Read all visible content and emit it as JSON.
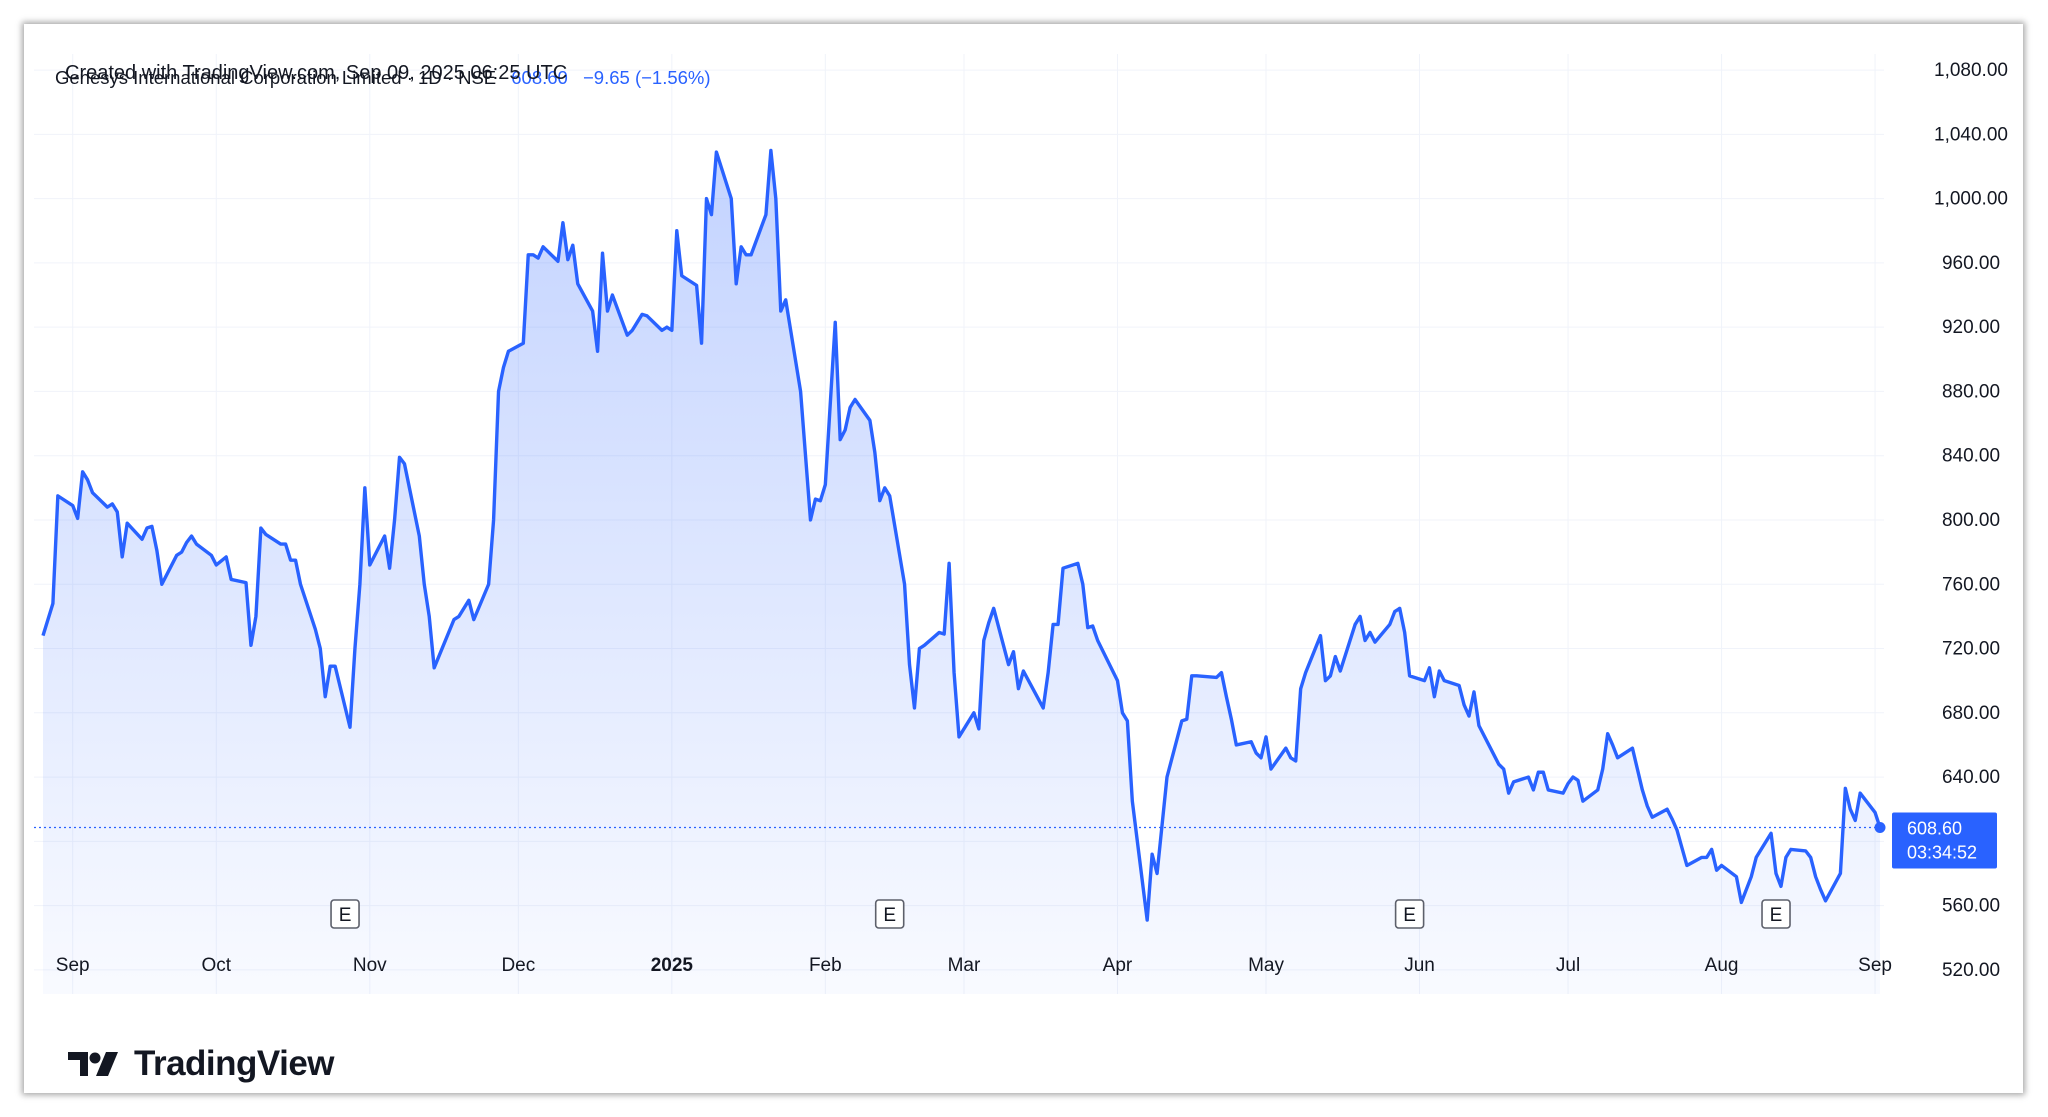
{
  "header": {
    "created_text": "Created with TradingView.com, Sep 09, 2025 06:25 UTC"
  },
  "legend": {
    "symbol": "Genesys International Corporation Limited · 1D · NSE",
    "last": "608.60",
    "change": "−9.65 (−1.56%)"
  },
  "price_badge": {
    "price": "608.60",
    "countdown": "03:34:52"
  },
  "earnings_marker": "E",
  "branding": {
    "logo_text": "TradingView"
  },
  "colors": {
    "line": "#2962ff",
    "area_top": "#2962ff",
    "text": "#131722",
    "grid": "#f0f3fa",
    "badge_bg": "#2962ff"
  },
  "chart_data": {
    "type": "area",
    "title": "Genesys International Corporation Limited · 1D · NSE",
    "interval": "1D",
    "exchange": "NSE",
    "xlabel": "",
    "ylabel": "",
    "ylim": [
      505,
      1090
    ],
    "y_ticks": [
      520,
      560,
      600,
      640,
      680,
      720,
      760,
      800,
      840,
      880,
      920,
      960,
      1000,
      1040,
      1080
    ],
    "y_tick_labels": [
      "520.00",
      "560.00",
      "640.00",
      "680.00",
      "720.00",
      "760.00",
      "800.00",
      "840.00",
      "880.00",
      "920.00",
      "960.00",
      "1,000.00",
      "1,040.00",
      "1,080.00"
    ],
    "x_axis_labels": [
      {
        "label": "Sep",
        "date": "2024-09-02",
        "bold": false
      },
      {
        "label": "Oct",
        "date": "2024-10-01",
        "bold": false
      },
      {
        "label": "Nov",
        "date": "2024-11-01",
        "bold": false
      },
      {
        "label": "Dec",
        "date": "2024-12-01",
        "bold": false
      },
      {
        "label": "2025",
        "date": "2025-01-01",
        "bold": true
      },
      {
        "label": "Feb",
        "date": "2025-02-01",
        "bold": false
      },
      {
        "label": "Mar",
        "date": "2025-03-01",
        "bold": false
      },
      {
        "label": "Apr",
        "date": "2025-04-01",
        "bold": false
      },
      {
        "label": "May",
        "date": "2025-05-01",
        "bold": false
      },
      {
        "label": "Jun",
        "date": "2025-06-01",
        "bold": false
      },
      {
        "label": "Jul",
        "date": "2025-07-01",
        "bold": false
      },
      {
        "label": "Aug",
        "date": "2025-08-01",
        "bold": false
      },
      {
        "label": "Sep",
        "date": "2025-09-01",
        "bold": false
      }
    ],
    "earnings_dates": [
      "2024-10-27",
      "2025-02-14",
      "2025-05-30",
      "2025-08-12"
    ],
    "last_price": 608.6,
    "grid": true,
    "series": [
      {
        "values": [
          [
            "2024-08-27",
            728
          ],
          [
            "2024-08-29",
            748
          ],
          [
            "2024-08-30",
            815
          ],
          [
            "2024-09-02",
            809
          ],
          [
            "2024-09-03",
            801
          ],
          [
            "2024-09-04",
            830
          ],
          [
            "2024-09-05",
            825
          ],
          [
            "2024-09-06",
            817
          ],
          [
            "2024-09-09",
            808
          ],
          [
            "2024-09-10",
            810
          ],
          [
            "2024-09-11",
            805
          ],
          [
            "2024-09-12",
            777
          ],
          [
            "2024-09-13",
            798
          ],
          [
            "2024-09-16",
            788
          ],
          [
            "2024-09-17",
            795
          ],
          [
            "2024-09-18",
            796
          ],
          [
            "2024-09-19",
            781
          ],
          [
            "2024-09-20",
            760
          ],
          [
            "2024-09-23",
            778
          ],
          [
            "2024-09-24",
            780
          ],
          [
            "2024-09-25",
            786
          ],
          [
            "2024-09-26",
            790
          ],
          [
            "2024-09-27",
            785
          ],
          [
            "2024-09-30",
            778
          ],
          [
            "2024-10-01",
            772
          ],
          [
            "2024-10-03",
            777
          ],
          [
            "2024-10-04",
            763
          ],
          [
            "2024-10-07",
            761
          ],
          [
            "2024-10-08",
            722
          ],
          [
            "2024-10-09",
            740
          ],
          [
            "2024-10-10",
            795
          ],
          [
            "2024-10-11",
            791
          ],
          [
            "2024-10-14",
            785
          ],
          [
            "2024-10-15",
            785
          ],
          [
            "2024-10-16",
            775
          ],
          [
            "2024-10-17",
            775
          ],
          [
            "2024-10-18",
            760
          ],
          [
            "2024-10-21",
            732
          ],
          [
            "2024-10-22",
            720
          ],
          [
            "2024-10-23",
            690
          ],
          [
            "2024-10-24",
            709
          ],
          [
            "2024-10-25",
            709
          ],
          [
            "2024-10-28",
            671
          ],
          [
            "2024-10-29",
            720
          ],
          [
            "2024-10-30",
            760
          ],
          [
            "2024-10-31",
            820
          ],
          [
            "2024-11-01",
            772
          ],
          [
            "2024-11-04",
            790
          ],
          [
            "2024-11-05",
            770
          ],
          [
            "2024-11-06",
            800
          ],
          [
            "2024-11-07",
            839
          ],
          [
            "2024-11-08",
            835
          ],
          [
            "2024-11-11",
            790
          ],
          [
            "2024-11-12",
            760
          ],
          [
            "2024-11-13",
            740
          ],
          [
            "2024-11-14",
            708
          ],
          [
            "2024-11-18",
            738
          ],
          [
            "2024-11-19",
            740
          ],
          [
            "2024-11-21",
            750
          ],
          [
            "2024-11-22",
            738
          ],
          [
            "2024-11-25",
            760
          ],
          [
            "2024-11-26",
            800
          ],
          [
            "2024-11-27",
            880
          ],
          [
            "2024-11-28",
            895
          ],
          [
            "2024-11-29",
            905
          ],
          [
            "2024-12-02",
            910
          ],
          [
            "2024-12-03",
            965
          ],
          [
            "2024-12-04",
            965
          ],
          [
            "2024-12-05",
            963
          ],
          [
            "2024-12-06",
            970
          ],
          [
            "2024-12-09",
            961
          ],
          [
            "2024-12-10",
            985
          ],
          [
            "2024-12-11",
            962
          ],
          [
            "2024-12-12",
            971
          ],
          [
            "2024-12-13",
            947
          ],
          [
            "2024-12-16",
            930
          ],
          [
            "2024-12-17",
            905
          ],
          [
            "2024-12-18",
            966
          ],
          [
            "2024-12-19",
            930
          ],
          [
            "2024-12-20",
            940
          ],
          [
            "2024-12-23",
            915
          ],
          [
            "2024-12-24",
            918
          ],
          [
            "2024-12-26",
            928
          ],
          [
            "2024-12-27",
            927
          ],
          [
            "2024-12-30",
            918
          ],
          [
            "2024-12-31",
            920
          ],
          [
            "2025-01-01",
            918
          ],
          [
            "2025-01-02",
            980
          ],
          [
            "2025-01-03",
            952
          ],
          [
            "2025-01-06",
            946
          ],
          [
            "2025-01-07",
            910
          ],
          [
            "2025-01-08",
            1000
          ],
          [
            "2025-01-09",
            990
          ],
          [
            "2025-01-10",
            1029
          ],
          [
            "2025-01-13",
            1000
          ],
          [
            "2025-01-14",
            947
          ],
          [
            "2025-01-15",
            970
          ],
          [
            "2025-01-16",
            965
          ],
          [
            "2025-01-17",
            965
          ],
          [
            "2025-01-20",
            990
          ],
          [
            "2025-01-21",
            1030
          ],
          [
            "2025-01-22",
            1000
          ],
          [
            "2025-01-23",
            930
          ],
          [
            "2025-01-24",
            937
          ],
          [
            "2025-01-27",
            880
          ],
          [
            "2025-01-28",
            840
          ],
          [
            "2025-01-29",
            800
          ],
          [
            "2025-01-30",
            813
          ],
          [
            "2025-01-31",
            812
          ],
          [
            "2025-02-01",
            822
          ],
          [
            "2025-02-03",
            923
          ],
          [
            "2025-02-04",
            850
          ],
          [
            "2025-02-05",
            856
          ],
          [
            "2025-02-06",
            870
          ],
          [
            "2025-02-07",
            875
          ],
          [
            "2025-02-10",
            862
          ],
          [
            "2025-02-11",
            842
          ],
          [
            "2025-02-12",
            812
          ],
          [
            "2025-02-13",
            820
          ],
          [
            "2025-02-14",
            815
          ],
          [
            "2025-02-17",
            760
          ],
          [
            "2025-02-18",
            710
          ],
          [
            "2025-02-19",
            683
          ],
          [
            "2025-02-20",
            720
          ],
          [
            "2025-02-21",
            722
          ],
          [
            "2025-02-24",
            730
          ],
          [
            "2025-02-25",
            729
          ],
          [
            "2025-02-26",
            773
          ],
          [
            "2025-02-27",
            705
          ],
          [
            "2025-02-28",
            665
          ],
          [
            "2025-03-03",
            680
          ],
          [
            "2025-03-04",
            670
          ],
          [
            "2025-03-05",
            725
          ],
          [
            "2025-03-06",
            736
          ],
          [
            "2025-03-07",
            745
          ],
          [
            "2025-03-10",
            710
          ],
          [
            "2025-03-11",
            718
          ],
          [
            "2025-03-12",
            695
          ],
          [
            "2025-03-13",
            706
          ],
          [
            "2025-03-17",
            683
          ],
          [
            "2025-03-18",
            705
          ],
          [
            "2025-03-19",
            735
          ],
          [
            "2025-03-20",
            735
          ],
          [
            "2025-03-21",
            770
          ],
          [
            "2025-03-24",
            773
          ],
          [
            "2025-03-25",
            760
          ],
          [
            "2025-03-26",
            733
          ],
          [
            "2025-03-27",
            734
          ],
          [
            "2025-03-28",
            725
          ],
          [
            "2025-04-01",
            700
          ],
          [
            "2025-04-02",
            680
          ],
          [
            "2025-04-03",
            675
          ],
          [
            "2025-04-04",
            625
          ],
          [
            "2025-04-07",
            551
          ],
          [
            "2025-04-08",
            592
          ],
          [
            "2025-04-09",
            580
          ],
          [
            "2025-04-11",
            640
          ],
          [
            "2025-04-14",
            675
          ],
          [
            "2025-04-15",
            676
          ],
          [
            "2025-04-16",
            703
          ],
          [
            "2025-04-17",
            703
          ],
          [
            "2025-04-21",
            702
          ],
          [
            "2025-04-22",
            705
          ],
          [
            "2025-04-23",
            690
          ],
          [
            "2025-04-24",
            676
          ],
          [
            "2025-04-25",
            660
          ],
          [
            "2025-04-28",
            662
          ],
          [
            "2025-04-29",
            655
          ],
          [
            "2025-04-30",
            652
          ],
          [
            "2025-05-01",
            665
          ],
          [
            "2025-05-02",
            645
          ],
          [
            "2025-05-05",
            658
          ],
          [
            "2025-05-06",
            652
          ],
          [
            "2025-05-07",
            650
          ],
          [
            "2025-05-08",
            695
          ],
          [
            "2025-05-09",
            705
          ],
          [
            "2025-05-12",
            728
          ],
          [
            "2025-05-13",
            700
          ],
          [
            "2025-05-14",
            703
          ],
          [
            "2025-05-15",
            715
          ],
          [
            "2025-05-16",
            706
          ],
          [
            "2025-05-19",
            735
          ],
          [
            "2025-05-20",
            740
          ],
          [
            "2025-05-21",
            725
          ],
          [
            "2025-05-22",
            730
          ],
          [
            "2025-05-23",
            724
          ],
          [
            "2025-05-26",
            735
          ],
          [
            "2025-05-27",
            743
          ],
          [
            "2025-05-28",
            745
          ],
          [
            "2025-05-29",
            730
          ],
          [
            "2025-05-30",
            703
          ],
          [
            "2025-06-02",
            700
          ],
          [
            "2025-06-03",
            708
          ],
          [
            "2025-06-04",
            690
          ],
          [
            "2025-06-05",
            706
          ],
          [
            "2025-06-06",
            700
          ],
          [
            "2025-06-09",
            697
          ],
          [
            "2025-06-10",
            685
          ],
          [
            "2025-06-11",
            678
          ],
          [
            "2025-06-12",
            693
          ],
          [
            "2025-06-13",
            672
          ],
          [
            "2025-06-16",
            654
          ],
          [
            "2025-06-17",
            648
          ],
          [
            "2025-06-18",
            645
          ],
          [
            "2025-06-19",
            630
          ],
          [
            "2025-06-20",
            637
          ],
          [
            "2025-06-23",
            640
          ],
          [
            "2025-06-24",
            632
          ],
          [
            "2025-06-25",
            643
          ],
          [
            "2025-06-26",
            643
          ],
          [
            "2025-06-27",
            632
          ],
          [
            "2025-06-30",
            630
          ],
          [
            "2025-07-01",
            636
          ],
          [
            "2025-07-02",
            640
          ],
          [
            "2025-07-03",
            638
          ],
          [
            "2025-07-04",
            625
          ],
          [
            "2025-07-07",
            632
          ],
          [
            "2025-07-08",
            645
          ],
          [
            "2025-07-09",
            667
          ],
          [
            "2025-07-10",
            660
          ],
          [
            "2025-07-11",
            652
          ],
          [
            "2025-07-14",
            658
          ],
          [
            "2025-07-15",
            645
          ],
          [
            "2025-07-16",
            632
          ],
          [
            "2025-07-17",
            622
          ],
          [
            "2025-07-18",
            615
          ],
          [
            "2025-07-21",
            620
          ],
          [
            "2025-07-22",
            614
          ],
          [
            "2025-07-23",
            607
          ],
          [
            "2025-07-24",
            596
          ],
          [
            "2025-07-25",
            585
          ],
          [
            "2025-07-28",
            590
          ],
          [
            "2025-07-29",
            590
          ],
          [
            "2025-07-30",
            595
          ],
          [
            "2025-07-31",
            582
          ],
          [
            "2025-08-01",
            585
          ],
          [
            "2025-08-04",
            578
          ],
          [
            "2025-08-05",
            562
          ],
          [
            "2025-08-06",
            570
          ],
          [
            "2025-08-07",
            578
          ],
          [
            "2025-08-08",
            590
          ],
          [
            "2025-08-11",
            605
          ],
          [
            "2025-08-12",
            580
          ],
          [
            "2025-08-13",
            572
          ],
          [
            "2025-08-14",
            590
          ],
          [
            "2025-08-15",
            595
          ],
          [
            "2025-08-18",
            594
          ],
          [
            "2025-08-19",
            590
          ],
          [
            "2025-08-20",
            578
          ],
          [
            "2025-08-21",
            570
          ],
          [
            "2025-08-22",
            563
          ],
          [
            "2025-08-25",
            580
          ],
          [
            "2025-08-26",
            633
          ],
          [
            "2025-08-27",
            620
          ],
          [
            "2025-08-28",
            613
          ],
          [
            "2025-08-29",
            630
          ],
          [
            "2025-09-01",
            618
          ],
          [
            "2025-09-02",
            608.6
          ]
        ]
      }
    ]
  }
}
